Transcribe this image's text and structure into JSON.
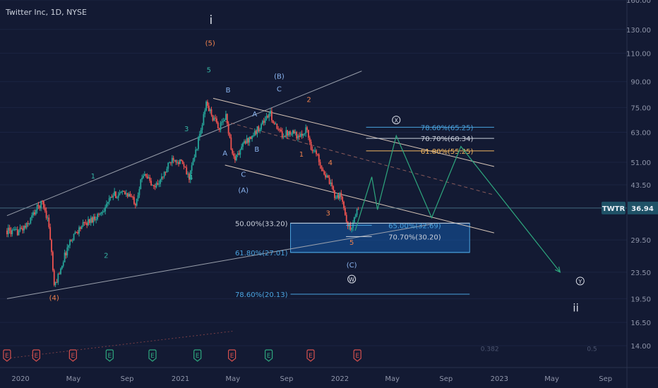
{
  "header": {
    "symbol_title": "Twitter Inc, 1D, NYSE"
  },
  "colors": {
    "background": "#131a33",
    "axis_text": "#8e94a8",
    "candle_up": "#26a69a",
    "candle_down": "#ef5350",
    "price_line": "#4f7d92",
    "price_label_bg": "#1f5267",
    "fib_blue": "#4aa3df",
    "fib_white": "#c9cfda",
    "fib_orange": "#f4b860",
    "zone_fill": "#1565c0",
    "wave_teal": "#35b3a3",
    "wave_orange": "#f0824d",
    "wave_blue": "#8ab4f0",
    "wave_white": "#d9dde6",
    "channel": "#9aa0ac",
    "projection": "#2ea77e",
    "earnings": "#d5504e",
    "earnings_up": "#2ea77e"
  },
  "chart_data": {
    "type": "candlestick",
    "symbol": "TWTR",
    "interval": "1D",
    "exchange": "NYSE",
    "y_scale": "log",
    "ylim": [
      12.0,
      160.0
    ],
    "x_ticks": [
      "2020",
      "May",
      "Sep",
      "2021",
      "May",
      "Sep",
      "2022",
      "May",
      "Sep",
      "2023",
      "May",
      "Sep"
    ],
    "y_ticks": [
      "160.00",
      "130.00",
      "110.00",
      "90.00",
      "75.00",
      "63.00",
      "51.00",
      "43.50",
      "36.94",
      "29.50",
      "23.50",
      "19.50",
      "16.50",
      "14.00"
    ],
    "y_tick_values": [
      160,
      130,
      110,
      90,
      75,
      63,
      51,
      43.5,
      29.5,
      23.5,
      19.5,
      16.5,
      14
    ],
    "last_price": {
      "label": "TWTR",
      "value": "36.94",
      "v": 36.94
    },
    "price_path": [
      [
        "2019-12-01",
        31.5
      ],
      [
        "2019-12-20",
        31.0
      ],
      [
        "2020-01-15",
        32.5
      ],
      [
        "2020-02-05",
        36.5
      ],
      [
        "2020-02-20",
        38.5
      ],
      [
        "2020-03-05",
        33.5
      ],
      [
        "2020-03-18",
        21.0
      ],
      [
        "2020-04-01",
        24.0
      ],
      [
        "2020-04-20",
        28.5
      ],
      [
        "2020-05-01",
        30.5
      ],
      [
        "2020-05-20",
        32.5
      ],
      [
        "2020-06-10",
        34.0
      ],
      [
        "2020-07-01",
        35.5
      ],
      [
        "2020-08-01",
        40.5
      ],
      [
        "2020-09-01",
        41.0
      ],
      [
        "2020-09-20",
        38.5
      ],
      [
        "2020-10-10",
        48.0
      ],
      [
        "2020-10-30",
        42.5
      ],
      [
        "2020-11-20",
        45.5
      ],
      [
        "2020-12-15",
        53.0
      ],
      [
        "2021-01-05",
        50.5
      ],
      [
        "2021-01-20",
        45.5
      ],
      [
        "2021-02-01",
        52.0
      ],
      [
        "2021-02-20",
        66.5
      ],
      [
        "2021-03-01",
        77.5
      ],
      [
        "2021-03-15",
        70.0
      ],
      [
        "2021-04-01",
        65.0
      ],
      [
        "2021-04-15",
        70.5
      ],
      [
        "2021-05-01",
        52.5
      ],
      [
        "2021-05-12",
        53.5
      ],
      [
        "2021-05-25",
        58.0
      ],
      [
        "2021-06-20",
        62.5
      ],
      [
        "2021-07-10",
        68.0
      ],
      [
        "2021-07-25",
        72.0
      ],
      [
        "2021-08-10",
        64.0
      ],
      [
        "2021-08-25",
        62.0
      ],
      [
        "2021-09-15",
        64.0
      ],
      [
        "2021-09-30",
        60.0
      ],
      [
        "2021-10-15",
        65.0
      ],
      [
        "2021-10-27",
        57.0
      ],
      [
        "2021-11-10",
        53.5
      ],
      [
        "2021-11-25",
        47.5
      ],
      [
        "2021-12-10",
        43.5
      ],
      [
        "2021-12-20",
        40.5
      ],
      [
        "2022-01-05",
        40.0
      ],
      [
        "2022-01-15",
        34.0
      ],
      [
        "2022-01-26",
        31.5
      ],
      [
        "2022-02-05",
        35.0
      ],
      [
        "2022-02-12",
        36.94
      ]
    ],
    "channels": [
      {
        "name": "upper-channel",
        "p1": [
          "2019-12-01",
          35.0
        ],
        "p2": [
          "2022-02-20",
          97.0
        ]
      },
      {
        "name": "lower-channel",
        "p1": [
          "2019-12-01",
          19.5
        ],
        "p2": [
          "2022-08-01",
          33.0
        ]
      },
      {
        "name": "falling-top",
        "p1": [
          "2021-03-17",
          80.0
        ],
        "p2": [
          "2022-12-20",
          49.5
        ]
      },
      {
        "name": "falling-bottom",
        "p1": [
          "2021-04-13",
          50.0
        ],
        "p2": [
          "2022-12-20",
          31.0
        ]
      },
      {
        "name": "dashed-mid",
        "p1": [
          "2021-04-13",
          68.0
        ],
        "p2": [
          "2022-12-20",
          40.5
        ]
      },
      {
        "name": "dashed-low",
        "p1": [
          "2019-12-01",
          12.8
        ],
        "p2": [
          "2021-04-30",
          15.5
        ]
      }
    ],
    "fib_levels": [
      {
        "label": "50.00%(33.20)",
        "v": 33.2,
        "from": "2021-09-10",
        "to": "2022-10-25",
        "label_at": "left",
        "color": "white"
      },
      {
        "label": "61.80%(27.01)",
        "v": 27.01,
        "from": "2021-09-10",
        "to": "2022-10-25",
        "label_at": "left",
        "color": "blue"
      },
      {
        "label": "78.60%(20.13)",
        "v": 20.13,
        "from": "2021-09-10",
        "to": "2022-10-25",
        "label_at": "left",
        "color": "blue"
      },
      {
        "label": "65.00%(32.69)",
        "v": 32.69,
        "from": "2022-01-15",
        "to": "2022-03-15",
        "label_at": "right",
        "color": "blue"
      },
      {
        "label": "70.70%(30.20)",
        "v": 30.2,
        "from": "2022-01-15",
        "to": "2022-03-15",
        "label_at": "right",
        "color": "white"
      },
      {
        "label": "78.60%(65.25)",
        "v": 65.25,
        "from": "2022-03-02",
        "to": "2022-12-20",
        "label_at": "right",
        "color": "blue"
      },
      {
        "label": "70.70%(60.34)",
        "v": 60.34,
        "from": "2022-03-02",
        "to": "2022-12-20",
        "label_at": "right",
        "color": "white"
      },
      {
        "label": "61.80%(55.25)",
        "v": 55.25,
        "from": "2022-03-02",
        "to": "2022-12-20",
        "label_at": "right",
        "color": "orange"
      }
    ],
    "target_zone": {
      "from": "2021-09-10",
      "to": "2022-10-25",
      "v_top": 33.2,
      "v_bottom": 27.01
    },
    "projection_path": [
      [
        "2022-02-05",
        31.5
      ],
      [
        "2022-03-15",
        46.0
      ],
      [
        "2022-03-28",
        36.5
      ],
      [
        "2022-05-10",
        61.5
      ],
      [
        "2022-07-30",
        34.5
      ],
      [
        "2022-10-05",
        57.0
      ],
      [
        "2023-05-20",
        23.5
      ]
    ],
    "wave_labels": [
      {
        "text": "(4)",
        "d": "2020-03-18",
        "v": 19.3,
        "color": "orange"
      },
      {
        "text": "1",
        "d": "2020-06-15",
        "v": 45.5,
        "color": "teal"
      },
      {
        "text": "2",
        "d": "2020-07-15",
        "v": 26.0,
        "color": "teal"
      },
      {
        "text": "3",
        "d": "2021-01-15",
        "v": 63.5,
        "color": "teal"
      },
      {
        "text": "4",
        "d": "2021-01-25",
        "v": 45.0,
        "color": "teal"
      },
      {
        "text": "5",
        "d": "2021-03-07",
        "v": 96.0,
        "color": "teal"
      },
      {
        "text": "(5)",
        "d": "2021-03-10",
        "v": 116.0,
        "color": "orange"
      },
      {
        "text": "i",
        "d": "2021-03-12",
        "v": 135.0,
        "color": "white",
        "size": 17
      },
      {
        "text": "B",
        "d": "2021-04-20",
        "v": 83.5,
        "color": "blue"
      },
      {
        "text": "A",
        "d": "2021-04-13",
        "v": 53.5,
        "color": "blue"
      },
      {
        "text": "C",
        "d": "2021-05-25",
        "v": 46.0,
        "color": "blue"
      },
      {
        "text": "(A)",
        "d": "2021-05-25",
        "v": 41.2,
        "color": "blue"
      },
      {
        "text": "A",
        "d": "2021-06-20",
        "v": 70.5,
        "color": "blue"
      },
      {
        "text": "B",
        "d": "2021-06-25",
        "v": 55.0,
        "color": "blue"
      },
      {
        "text": "C",
        "d": "2021-08-15",
        "v": 84.0,
        "color": "blue"
      },
      {
        "text": "(B)",
        "d": "2021-08-15",
        "v": 92.0,
        "color": "blue"
      },
      {
        "text": "2",
        "d": "2021-10-22",
        "v": 78.0,
        "color": "orange"
      },
      {
        "text": "1",
        "d": "2021-10-05",
        "v": 53.0,
        "color": "orange"
      },
      {
        "text": "4",
        "d": "2021-12-10",
        "v": 50.0,
        "color": "orange"
      },
      {
        "text": "3",
        "d": "2021-12-05",
        "v": 35.0,
        "color": "orange"
      },
      {
        "text": "5",
        "d": "2022-01-28",
        "v": 28.5,
        "color": "orange"
      },
      {
        "text": "(C)",
        "d": "2022-01-28",
        "v": 24.3,
        "color": "blue"
      },
      {
        "text": "W",
        "d": "2022-01-28",
        "v": 22.0,
        "color": "white",
        "circled": true
      },
      {
        "text": "X",
        "d": "2022-05-10",
        "v": 67.5,
        "color": "white",
        "circled": true
      },
      {
        "text": "Y",
        "d": "2023-07-05",
        "v": 21.7,
        "color": "white",
        "circled": true
      },
      {
        "text": "ii",
        "d": "2023-06-25",
        "v": 17.8,
        "color": "white",
        "size": 15
      }
    ],
    "earnings_marker_label": "E",
    "earnings_markers": [
      {
        "d": "2019-12-01",
        "dir": "down"
      },
      {
        "d": "2020-02-06",
        "dir": "down"
      },
      {
        "d": "2020-04-30",
        "dir": "down"
      },
      {
        "d": "2020-07-23",
        "dir": "up"
      },
      {
        "d": "2020-10-29",
        "dir": "up"
      },
      {
        "d": "2021-02-09",
        "dir": "up"
      },
      {
        "d": "2021-04-29",
        "dir": "down"
      },
      {
        "d": "2021-07-22",
        "dir": "up"
      },
      {
        "d": "2021-10-26",
        "dir": "down"
      },
      {
        "d": "2022-02-10",
        "dir": "down"
      }
    ],
    "faint_labels": [
      {
        "text": "0.382",
        "d": "2022-12-10",
        "v": 13.5
      },
      {
        "text": "0.5",
        "d": "2023-08-01",
        "v": 13.5
      }
    ]
  }
}
